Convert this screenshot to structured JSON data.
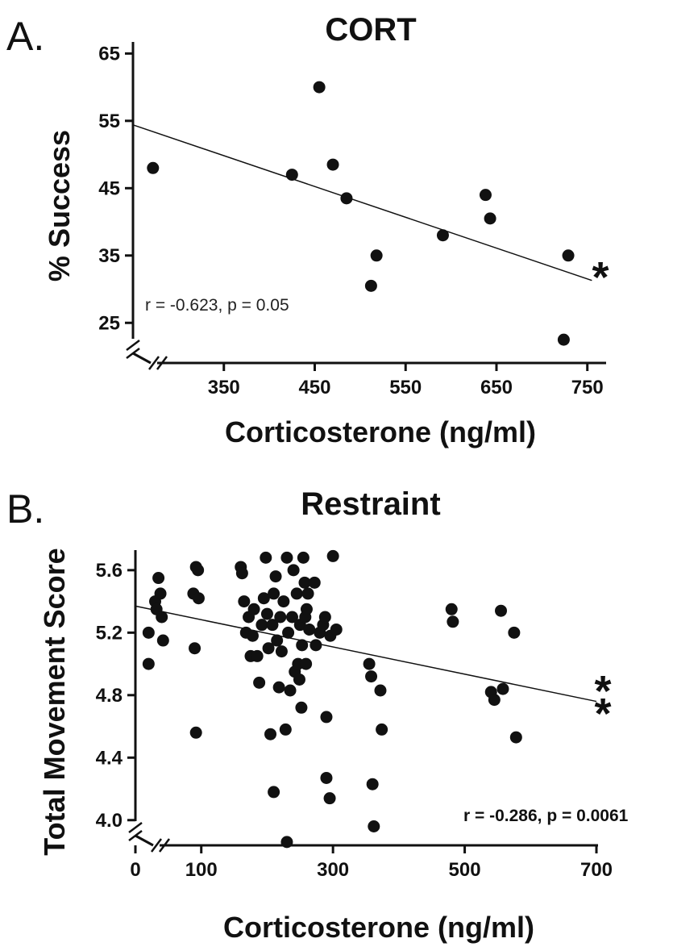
{
  "chart_data": [
    {
      "type": "scatter",
      "panel": "A.",
      "title": "CORT",
      "xlabel": "Corticosterone (ng/ml)",
      "ylabel": "% Success",
      "xlim": [
        250,
        760
      ],
      "ylim": [
        20,
        66
      ],
      "xticks": [
        350,
        450,
        550,
        650,
        750
      ],
      "yticks": [
        25,
        35,
        45,
        55,
        65
      ],
      "axis_break": true,
      "points": [
        {
          "x": 272,
          "y": 48
        },
        {
          "x": 425,
          "y": 47
        },
        {
          "x": 455,
          "y": 60
        },
        {
          "x": 470,
          "y": 48.5
        },
        {
          "x": 485,
          "y": 43.5
        },
        {
          "x": 512,
          "y": 30.5
        },
        {
          "x": 518,
          "y": 35
        },
        {
          "x": 591,
          "y": 38
        },
        {
          "x": 638,
          "y": 44
        },
        {
          "x": 643,
          "y": 40.5
        },
        {
          "x": 724,
          "y": 22.5
        },
        {
          "x": 729,
          "y": 35
        }
      ],
      "trendline": {
        "x": [
          250,
          755
        ],
        "y": [
          54.4,
          31.3
        ]
      },
      "annotation": "r = -0.623, p = 0.05",
      "significance": "*"
    },
    {
      "type": "scatter",
      "panel": "B.",
      "title": "Restraint",
      "xlabel": "Corticosterone (ng/ml)",
      "ylabel": "Total Movement Score",
      "xlim": [
        0,
        700
      ],
      "ylim": [
        3.88,
        5.78
      ],
      "xticks": [
        0,
        100,
        300,
        500,
        700
      ],
      "yticks": [
        4.0,
        4.4,
        4.8,
        5.2,
        5.6
      ],
      "axis_break": true,
      "points": [
        {
          "x": 20,
          "y": 5.2
        },
        {
          "x": 20,
          "y": 5.0
        },
        {
          "x": 30,
          "y": 5.4
        },
        {
          "x": 32,
          "y": 5.35
        },
        {
          "x": 35,
          "y": 5.55
        },
        {
          "x": 38,
          "y": 5.45
        },
        {
          "x": 40,
          "y": 5.3
        },
        {
          "x": 42,
          "y": 5.15
        },
        {
          "x": 88,
          "y": 5.45
        },
        {
          "x": 92,
          "y": 5.62
        },
        {
          "x": 95,
          "y": 5.6
        },
        {
          "x": 96,
          "y": 5.42
        },
        {
          "x": 90,
          "y": 5.1
        },
        {
          "x": 92,
          "y": 4.56
        },
        {
          "x": 160,
          "y": 5.62
        },
        {
          "x": 162,
          "y": 5.58
        },
        {
          "x": 165,
          "y": 5.4
        },
        {
          "x": 168,
          "y": 5.2
        },
        {
          "x": 172,
          "y": 5.3
        },
        {
          "x": 175,
          "y": 5.05
        },
        {
          "x": 178,
          "y": 5.18
        },
        {
          "x": 180,
          "y": 5.35
        },
        {
          "x": 185,
          "y": 5.05
        },
        {
          "x": 188,
          "y": 4.88
        },
        {
          "x": 192,
          "y": 5.25
        },
        {
          "x": 195,
          "y": 5.42
        },
        {
          "x": 198,
          "y": 5.68
        },
        {
          "x": 200,
          "y": 5.32
        },
        {
          "x": 202,
          "y": 5.1
        },
        {
          "x": 205,
          "y": 4.55
        },
        {
          "x": 208,
          "y": 5.25
        },
        {
          "x": 210,
          "y": 5.45
        },
        {
          "x": 213,
          "y": 5.56
        },
        {
          "x": 215,
          "y": 5.15
        },
        {
          "x": 218,
          "y": 4.85
        },
        {
          "x": 220,
          "y": 5.3
        },
        {
          "x": 222,
          "y": 5.08
        },
        {
          "x": 225,
          "y": 5.4
        },
        {
          "x": 228,
          "y": 4.58
        },
        {
          "x": 230,
          "y": 5.68
        },
        {
          "x": 232,
          "y": 5.2
        },
        {
          "x": 235,
          "y": 4.83
        },
        {
          "x": 238,
          "y": 5.3
        },
        {
          "x": 240,
          "y": 5.6
        },
        {
          "x": 242,
          "y": 4.95
        },
        {
          "x": 245,
          "y": 5.45
        },
        {
          "x": 247,
          "y": 5.0
        },
        {
          "x": 249,
          "y": 4.9
        },
        {
          "x": 250,
          "y": 5.25
        },
        {
          "x": 252,
          "y": 4.72
        },
        {
          "x": 253,
          "y": 5.12
        },
        {
          "x": 255,
          "y": 5.68
        },
        {
          "x": 257,
          "y": 5.52
        },
        {
          "x": 258,
          "y": 5.3
        },
        {
          "x": 259,
          "y": 5.0
        },
        {
          "x": 260,
          "y": 5.35
        },
        {
          "x": 262,
          "y": 5.45
        },
        {
          "x": 264,
          "y": 5.22
        },
        {
          "x": 272,
          "y": 5.52
        },
        {
          "x": 274,
          "y": 5.12
        },
        {
          "x": 280,
          "y": 5.2
        },
        {
          "x": 285,
          "y": 5.25
        },
        {
          "x": 288,
          "y": 5.3
        },
        {
          "x": 290,
          "y": 4.66
        },
        {
          "x": 290,
          "y": 4.27
        },
        {
          "x": 295,
          "y": 4.14
        },
        {
          "x": 296,
          "y": 5.18
        },
        {
          "x": 300,
          "y": 5.69
        },
        {
          "x": 305,
          "y": 5.22
        },
        {
          "x": 210,
          "y": 4.18
        },
        {
          "x": 230,
          "y": 3.86
        },
        {
          "x": 355,
          "y": 5.0
        },
        {
          "x": 358,
          "y": 4.92
        },
        {
          "x": 360,
          "y": 4.23
        },
        {
          "x": 362,
          "y": 3.96
        },
        {
          "x": 372,
          "y": 4.83
        },
        {
          "x": 374,
          "y": 4.58
        },
        {
          "x": 480,
          "y": 5.35
        },
        {
          "x": 482,
          "y": 5.27
        },
        {
          "x": 540,
          "y": 4.82
        },
        {
          "x": 545,
          "y": 4.77
        },
        {
          "x": 555,
          "y": 5.34
        },
        {
          "x": 558,
          "y": 4.84
        },
        {
          "x": 575,
          "y": 5.2
        },
        {
          "x": 578,
          "y": 4.53
        }
      ],
      "trendline": {
        "x": [
          0,
          700
        ],
        "y": [
          5.37,
          4.76
        ]
      },
      "annotation": "r = -0.286, p = 0.0061",
      "significance": "**"
    }
  ]
}
